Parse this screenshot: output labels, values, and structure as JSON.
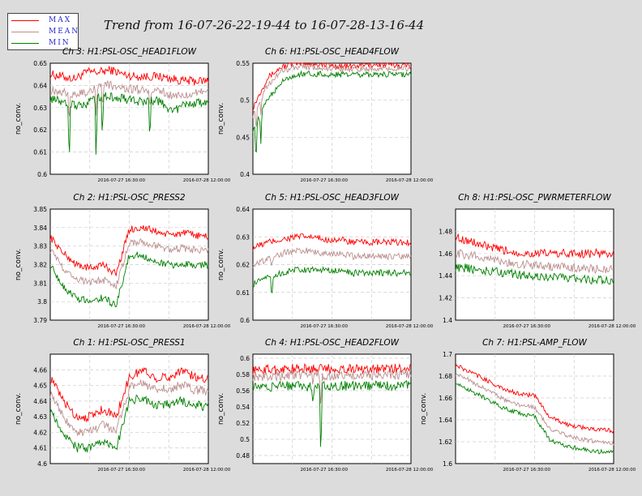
{
  "page_title": "Trend from 16-07-26-22-19-44 to 16-07-28-13-16-44",
  "legend": [
    {
      "label": "MAX",
      "color": "#ff0000"
    },
    {
      "label": "MEAN",
      "color": "#bc8f8f"
    },
    {
      "label": "MIN",
      "color": "#008000"
    }
  ],
  "x_tick_labels": [
    "2016-07-27 16:30:00",
    "2016-07-28 12:00:00"
  ],
  "chart_data": [
    {
      "type": "line",
      "title": "Ch 3: H1:PSL-OSC_HEAD1FLOW",
      "ylabel": "no_conv.",
      "ylim": [
        0.6,
        0.65
      ],
      "yticks": [
        "0.6",
        "0.61",
        "0.62",
        "0.63",
        "0.64",
        "0.65"
      ],
      "x_ticks": [
        "2016-07-27 16:30:00",
        "2016-07-28 12:00:00"
      ],
      "grid": true,
      "noise": 0.002,
      "spikes": [
        [
          0.12,
          -0.028
        ],
        [
          0.29,
          -0.03
        ],
        [
          0.33,
          -0.02
        ],
        [
          0.63,
          -0.018
        ]
      ],
      "series": [
        {
          "name": "MAX",
          "values": [
            0.645,
            0.644,
            0.643,
            0.646,
            0.646,
            0.647,
            0.645,
            0.644,
            0.644,
            0.644,
            0.643,
            0.642,
            0.642,
            0.642
          ]
        },
        {
          "name": "MEAN",
          "values": [
            0.638,
            0.637,
            0.636,
            0.637,
            0.64,
            0.64,
            0.639,
            0.638,
            0.638,
            0.638,
            0.635,
            0.636,
            0.637,
            0.637
          ]
        },
        {
          "name": "MIN",
          "values": [
            0.634,
            0.633,
            0.631,
            0.632,
            0.635,
            0.635,
            0.634,
            0.633,
            0.633,
            0.633,
            0.628,
            0.631,
            0.632,
            0.632
          ]
        }
      ]
    },
    {
      "type": "line",
      "title": "Ch 6: H1:PSL-OSC_HEAD4FLOW",
      "ylabel": "no_conv.",
      "ylim": [
        0.4,
        0.55
      ],
      "yticks": [
        "0.4",
        "0.45",
        "0.5",
        "0.55"
      ],
      "x_ticks": [
        "2016-07-27 16:30:00",
        "2016-07-28 12:00:00"
      ],
      "grid": true,
      "noise": 0.004,
      "spikes": [
        [
          0.02,
          -0.06
        ],
        [
          0.05,
          -0.04
        ]
      ],
      "series": [
        {
          "name": "MAX",
          "values": [
            0.49,
            0.53,
            0.545,
            0.55,
            0.55,
            0.548,
            0.546,
            0.546,
            0.548,
            0.548,
            0.547,
            0.547
          ]
        },
        {
          "name": "MEAN",
          "values": [
            0.48,
            0.52,
            0.54,
            0.545,
            0.544,
            0.543,
            0.542,
            0.542,
            0.543,
            0.543,
            0.543,
            0.543
          ]
        },
        {
          "name": "MIN",
          "values": [
            0.46,
            0.5,
            0.525,
            0.535,
            0.536,
            0.535,
            0.534,
            0.534,
            0.535,
            0.535,
            0.535,
            0.535
          ]
        }
      ]
    },
    {
      "type": "line",
      "title": "Ch 2: H1:PSL-OSC_PRESS2",
      "ylabel": "no_conv.",
      "ylim": [
        3.79,
        3.85
      ],
      "yticks": [
        "3.79",
        "3.8",
        "3.81",
        "3.82",
        "3.83",
        "3.84",
        "3.85"
      ],
      "x_ticks": [
        "2016-07-27 16:30:00",
        "2016-07-28 12:00:00"
      ],
      "grid": true,
      "noise": 0.002,
      "spikes": [],
      "series": [
        {
          "name": "MAX",
          "values": [
            3.835,
            3.826,
            3.82,
            3.818,
            3.82,
            3.815,
            3.839,
            3.84,
            3.838,
            3.836,
            3.837,
            3.836,
            3.835
          ]
        },
        {
          "name": "MEAN",
          "values": [
            3.828,
            3.818,
            3.812,
            3.81,
            3.812,
            3.808,
            3.832,
            3.832,
            3.83,
            3.828,
            3.829,
            3.828,
            3.828
          ]
        },
        {
          "name": "MIN",
          "values": [
            3.82,
            3.808,
            3.802,
            3.8,
            3.802,
            3.798,
            3.825,
            3.825,
            3.822,
            3.82,
            3.82,
            3.82,
            3.82
          ]
        }
      ]
    },
    {
      "type": "line",
      "title": "Ch 5: H1:PSL-OSC_HEAD3FLOW",
      "ylabel": "no_conv.",
      "ylim": [
        0.6,
        0.64
      ],
      "yticks": [
        "0.6",
        "0.61",
        "0.62",
        "0.63",
        "0.64"
      ],
      "x_ticks": [
        "2016-07-27 16:30:00",
        "2016-07-28 12:00:00"
      ],
      "grid": true,
      "noise": 0.0012,
      "spikes": [
        [
          0.12,
          -0.008
        ]
      ],
      "series": [
        {
          "name": "MAX",
          "values": [
            0.626,
            0.628,
            0.629,
            0.63,
            0.63,
            0.629,
            0.629,
            0.628,
            0.628,
            0.628,
            0.628,
            0.628
          ]
        },
        {
          "name": "MEAN",
          "values": [
            0.62,
            0.622,
            0.624,
            0.625,
            0.625,
            0.624,
            0.624,
            0.623,
            0.623,
            0.623,
            0.623,
            0.623
          ]
        },
        {
          "name": "MIN",
          "values": [
            0.613,
            0.615,
            0.617,
            0.618,
            0.618,
            0.618,
            0.618,
            0.617,
            0.617,
            0.617,
            0.617,
            0.617
          ]
        }
      ]
    },
    {
      "type": "line",
      "title": "Ch 8: H1:PSL-OSC_PWRMETERFLOW",
      "ylabel": "",
      "ylim": [
        1.4,
        1.5
      ],
      "yticks": [
        "1.4",
        "1.42",
        "1.44",
        "1.46",
        "1.48"
      ],
      "x_ticks": [
        "2016-07-27 16:30:00",
        "2016-07-28 12:00:00"
      ],
      "grid": true,
      "noise": 0.004,
      "spikes": [],
      "series": [
        {
          "name": "MAX",
          "values": [
            1.475,
            1.47,
            1.465,
            1.462,
            1.46,
            1.46,
            1.46,
            1.46,
            1.46,
            1.46
          ]
        },
        {
          "name": "MEAN",
          "values": [
            1.46,
            1.458,
            1.455,
            1.452,
            1.45,
            1.449,
            1.448,
            1.447,
            1.446,
            1.446
          ]
        },
        {
          "name": "MIN",
          "values": [
            1.448,
            1.446,
            1.444,
            1.442,
            1.44,
            1.439,
            1.438,
            1.437,
            1.436,
            1.436
          ]
        }
      ]
    },
    {
      "type": "line",
      "title": "Ch 1: H1:PSL-OSC_PRESS1",
      "ylabel": "no_conv.",
      "ylim": [
        4.6,
        4.67
      ],
      "yticks": [
        "4.6",
        "4.61",
        "4.62",
        "4.63",
        "4.64",
        "4.65",
        "4.66"
      ],
      "x_ticks": [
        "2016-07-27 16:30:00",
        "2016-07-28 12:00:00"
      ],
      "grid": true,
      "noise": 0.003,
      "spikes": [],
      "series": [
        {
          "name": "MAX",
          "values": [
            4.655,
            4.64,
            4.63,
            4.63,
            4.635,
            4.63,
            4.655,
            4.66,
            4.655,
            4.655,
            4.66,
            4.655,
            4.655
          ]
        },
        {
          "name": "MEAN",
          "values": [
            4.645,
            4.63,
            4.62,
            4.62,
            4.625,
            4.62,
            4.648,
            4.652,
            4.647,
            4.648,
            4.65,
            4.647,
            4.647
          ]
        },
        {
          "name": "MIN",
          "values": [
            4.635,
            4.62,
            4.61,
            4.61,
            4.613,
            4.61,
            4.64,
            4.642,
            4.637,
            4.638,
            4.64,
            4.637,
            4.637
          ]
        }
      ]
    },
    {
      "type": "line",
      "title": "Ch 4: H1:PSL-OSC_HEAD2FLOW",
      "ylabel": "no_conv.",
      "ylim": [
        0.47,
        0.605
      ],
      "yticks": [
        "0.48",
        "0.5",
        "0.52",
        "0.54",
        "0.56",
        "0.58",
        "0.6"
      ],
      "x_ticks": [
        "2016-07-27 16:30:00",
        "2016-07-28 12:00:00"
      ],
      "grid": true,
      "noise": 0.006,
      "spikes": [
        [
          0.43,
          -0.1
        ],
        [
          0.38,
          -0.03
        ]
      ],
      "series": [
        {
          "name": "MAX",
          "values": [
            0.585,
            0.586,
            0.587,
            0.587,
            0.587,
            0.587,
            0.587,
            0.587,
            0.587,
            0.588
          ]
        },
        {
          "name": "MEAN",
          "values": [
            0.578,
            0.578,
            0.579,
            0.579,
            0.579,
            0.579,
            0.579,
            0.579,
            0.579,
            0.58
          ]
        },
        {
          "name": "MIN",
          "values": [
            0.565,
            0.565,
            0.566,
            0.565,
            0.566,
            0.566,
            0.566,
            0.566,
            0.566,
            0.567
          ]
        }
      ]
    },
    {
      "type": "line",
      "title": "Ch 7: H1:PSL-AMP_FLOW",
      "ylabel": "no_conv.",
      "ylim": [
        1.6,
        1.7
      ],
      "yticks": [
        "1.6",
        "1.62",
        "1.64",
        "1.66",
        "1.68",
        "1.7"
      ],
      "x_ticks": [
        "2016-07-27 16:30:00",
        "2016-07-28 12:00:00"
      ],
      "grid": true,
      "noise": 0.002,
      "spikes": [],
      "series": [
        {
          "name": "MAX",
          "values": [
            1.69,
            1.683,
            1.676,
            1.668,
            1.664,
            1.662,
            1.642,
            1.636,
            1.633,
            1.631,
            1.63
          ]
        },
        {
          "name": "MEAN",
          "values": [
            1.683,
            1.675,
            1.667,
            1.659,
            1.654,
            1.651,
            1.632,
            1.626,
            1.622,
            1.62,
            1.618
          ]
        },
        {
          "name": "MIN",
          "values": [
            1.675,
            1.666,
            1.659,
            1.651,
            1.646,
            1.643,
            1.621,
            1.616,
            1.613,
            1.611,
            1.61
          ]
        }
      ]
    }
  ]
}
